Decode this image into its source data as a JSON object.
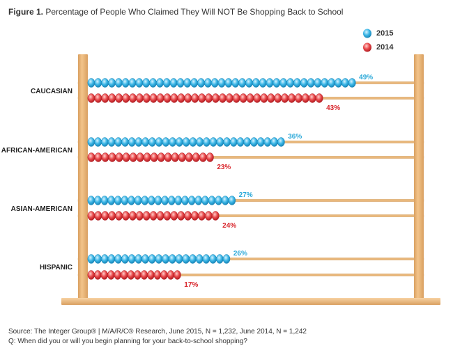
{
  "title": {
    "prefix": "Figure 1.",
    "text": "Percentage of People Who Claimed They Will NOT Be Shopping Back to School"
  },
  "footer": {
    "source": "Source: The Integer Group® | M/A/R/C® Research, June 2015, N = 1,232, June 2014, N = 1,242",
    "question": "Q: When did you or will you begin planning for your back-to-school shopping?"
  },
  "colors": {
    "series_2015": "#3ab6e6",
    "series_2014": "#e8474a",
    "label_2015": "#2aa8d8",
    "label_2014": "#d8252b",
    "wood": "#f3c48a",
    "wood_dark": "#d9a061",
    "rod": "#e9b87c"
  },
  "chart_data": {
    "type": "bar",
    "orientation": "horizontal",
    "title": "Percentage of People Who Claimed They Will NOT Be Shopping Back to School",
    "categories": [
      "CAUCASIAN",
      "AFRICAN-AMERICAN",
      "ASIAN-AMERICAN",
      "HISPANIC"
    ],
    "series": [
      {
        "name": "2015",
        "values": [
          49,
          36,
          27,
          26
        ],
        "labels": [
          "49%",
          "36%",
          "27%",
          "26%"
        ]
      },
      {
        "name": "2014",
        "values": [
          43,
          23,
          24,
          17
        ],
        "labels": [
          "43%",
          "23%",
          "24%",
          "17%"
        ]
      }
    ],
    "unit": "%",
    "legend": "top-right"
  }
}
